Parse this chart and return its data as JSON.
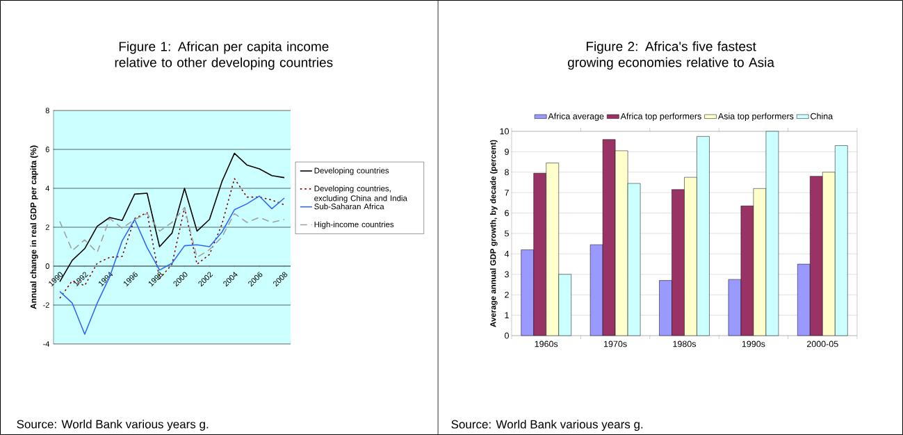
{
  "chart_data": [
    {
      "type": "line",
      "title": "Figure 1: African per capita income relative to other developing countries",
      "ylabel": "Annual change in real GDP per capita (%)",
      "x": [
        1990,
        1991,
        1992,
        1993,
        1994,
        1995,
        1996,
        1997,
        1998,
        1999,
        2000,
        2001,
        2002,
        2003,
        2004,
        2005,
        2006,
        2007,
        2008
      ],
      "series": [
        {
          "name": "Developing countries",
          "color": "#000000",
          "line_style": "solid",
          "values": [
            -0.8,
            0.3,
            0.9,
            2.05,
            2.5,
            2.35,
            3.7,
            3.75,
            1.0,
            1.7,
            4.0,
            1.8,
            2.4,
            4.35,
            5.8,
            5.2,
            5.0,
            4.65,
            4.55
          ]
        },
        {
          "name": "Developing countries, excluding China and India",
          "color": "#800000",
          "line_style": "dotted",
          "values": [
            -1.65,
            -0.75,
            -1.0,
            0.15,
            0.45,
            0.5,
            2.45,
            2.75,
            -0.65,
            0.1,
            3.0,
            0.1,
            0.6,
            2.15,
            4.5,
            3.55,
            3.55,
            3.4,
            3.15
          ]
        },
        {
          "name": "Sub-Saharan Africa",
          "color": "#3366ff",
          "line_style": "solid",
          "values": [
            -1.3,
            -1.9,
            -3.5,
            -1.9,
            -0.55,
            1.3,
            2.4,
            0.95,
            -0.2,
            0.15,
            1.05,
            1.1,
            1.0,
            1.75,
            2.9,
            3.2,
            3.6,
            2.95,
            3.5
          ]
        },
        {
          "name": "High-income countries",
          "color": "#a0a0a0",
          "line_style": "dashed",
          "values": [
            2.3,
            0.8,
            1.35,
            0.7,
            2.45,
            1.95,
            2.4,
            2.7,
            1.8,
            2.25,
            3.0,
            0.45,
            0.85,
            1.5,
            2.7,
            2.25,
            2.5,
            2.25,
            2.4
          ]
        }
      ],
      "xlim": [
        1989.5,
        2008.5
      ],
      "ylim": [
        -4,
        8
      ],
      "xticks": [
        1990,
        1992,
        1994,
        1996,
        1998,
        2000,
        2002,
        2004,
        2006,
        2008
      ],
      "yticks": [
        -4,
        -2,
        0,
        2,
        4,
        6,
        8
      ],
      "grid": "y",
      "legend": "right",
      "annotations": [
        "Source: World Bank various years g."
      ]
    },
    {
      "type": "bar",
      "title": "Figure 2: Africa's five fastest growing economies relative to Asia",
      "ylabel": "Average annual GDP growth, by decade (percent)",
      "categories": [
        "1960s",
        "1970s",
        "1980s",
        "1990s",
        "2000-05"
      ],
      "series": [
        {
          "name": "Africa average",
          "color": "#9999ff",
          "values": [
            4.2,
            4.45,
            2.7,
            2.75,
            3.5
          ]
        },
        {
          "name": "Africa top performers",
          "color": "#993366",
          "values": [
            7.95,
            9.6,
            7.15,
            6.35,
            7.8
          ]
        },
        {
          "name": "Asia top performers",
          "color": "#ffffcc",
          "values": [
            8.45,
            9.05,
            7.75,
            7.2,
            8.0
          ]
        },
        {
          "name": "China",
          "color": "#ccffff",
          "values": [
            3.0,
            7.45,
            9.75,
            10.0,
            9.3
          ]
        }
      ],
      "ylim": [
        0,
        10
      ],
      "yticks": [
        0,
        1,
        2,
        3,
        4,
        5,
        6,
        7,
        8,
        9,
        10
      ],
      "grid": "y",
      "legend": "top",
      "annotations": [
        "Source: World Bank various years g."
      ]
    }
  ]
}
